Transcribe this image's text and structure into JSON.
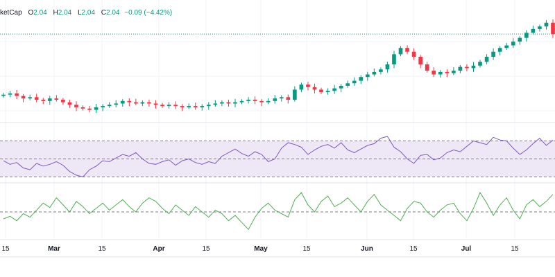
{
  "legend": {
    "name": "ketCap",
    "open_key": "O",
    "open": "2.04",
    "high_key": "H",
    "high": "2.04",
    "low_key": "L",
    "low": "2.04",
    "close_key": "C",
    "close": "2.04",
    "change": "−0.09 (−4.42%)"
  },
  "colors": {
    "up": "#089981",
    "down": "#f23645",
    "rsi_line": "#7e57c2",
    "rsi_band": "#ede7f6",
    "osc_line": "#4caf50",
    "price_line": "#089981",
    "grid": "#f0f3fa",
    "separator": "#e0e3eb"
  },
  "x_axis": {
    "ticks": [
      {
        "label": "15",
        "bold": false
      },
      {
        "label": "Mar",
        "bold": true
      },
      {
        "label": "15",
        "bold": false
      },
      {
        "label": "Apr",
        "bold": true
      },
      {
        "label": "15",
        "bold": false
      },
      {
        "label": "May",
        "bold": true
      },
      {
        "label": "15",
        "bold": false
      },
      {
        "label": "Jun",
        "bold": true
      },
      {
        "label": "15",
        "bold": false
      },
      {
        "label": "Jul",
        "bold": true
      },
      {
        "label": "15",
        "bold": false
      }
    ]
  },
  "chart_data": [
    {
      "type": "candlestick",
      "title": "",
      "closes": [
        1.56,
        1.57,
        1.55,
        1.53,
        1.54,
        1.52,
        1.51,
        1.53,
        1.52,
        1.5,
        1.48,
        1.46,
        1.45,
        1.44,
        1.46,
        1.47,
        1.48,
        1.49,
        1.51,
        1.5,
        1.49,
        1.5,
        1.49,
        1.48,
        1.47,
        1.48,
        1.47,
        1.46,
        1.47,
        1.46,
        1.47,
        1.48,
        1.49,
        1.5,
        1.49,
        1.5,
        1.51,
        1.52,
        1.51,
        1.5,
        1.51,
        1.53,
        1.54,
        1.52,
        1.6,
        1.64,
        1.62,
        1.6,
        1.58,
        1.59,
        1.61,
        1.63,
        1.65,
        1.67,
        1.7,
        1.72,
        1.74,
        1.76,
        1.8,
        1.88,
        1.93,
        1.9,
        1.86,
        1.8,
        1.75,
        1.72,
        1.74,
        1.73,
        1.75,
        1.78,
        1.77,
        1.79,
        1.82,
        1.86,
        1.9,
        1.93,
        1.95,
        1.98,
        2.01,
        2.05,
        2.08,
        2.1,
        2.13,
        2.04
      ],
      "ylim": [
        1.35,
        2.2
      ]
    },
    {
      "type": "line",
      "title": "",
      "series": [
        {
          "values": [
            48,
            44,
            46,
            40,
            38,
            45,
            42,
            44,
            47,
            43,
            36,
            32,
            30,
            38,
            42,
            48,
            47,
            51,
            55,
            53,
            57,
            50,
            45,
            44,
            47,
            49,
            43,
            48,
            50,
            46,
            44,
            47,
            45,
            53,
            57,
            61,
            56,
            53,
            58,
            55,
            47,
            50,
            62,
            68,
            66,
            63,
            55,
            60,
            64,
            66,
            62,
            68,
            60,
            57,
            61,
            65,
            67,
            73,
            75,
            63,
            58,
            50,
            45,
            54,
            55,
            49,
            51,
            57,
            60,
            58,
            64,
            70,
            68,
            66,
            74,
            71,
            70,
            62,
            55,
            60,
            67,
            73,
            65,
            71
          ]
        }
      ],
      "levels": [
        70,
        50,
        30
      ],
      "ylim": [
        25,
        85
      ]
    },
    {
      "type": "line",
      "title": "",
      "series": [
        {
          "values": [
            42,
            45,
            40,
            48,
            44,
            52,
            60,
            55,
            66,
            58,
            50,
            62,
            56,
            48,
            54,
            60,
            52,
            58,
            64,
            56,
            50,
            60,
            66,
            62,
            54,
            48,
            58,
            52,
            46,
            56,
            50,
            44,
            52,
            48,
            40,
            46,
            38,
            30,
            44,
            54,
            60,
            52,
            48,
            44,
            64,
            72,
            58,
            50,
            62,
            68,
            56,
            60,
            66,
            58,
            50,
            62,
            70,
            58,
            52,
            46,
            40,
            54,
            62,
            60,
            50,
            44,
            52,
            58,
            60,
            48,
            40,
            54,
            72,
            60,
            46,
            58,
            66,
            52,
            42,
            58,
            64,
            56,
            62,
            70
          ]
        }
      ],
      "levels": [
        50
      ],
      "ylim": [
        20,
        80
      ]
    }
  ]
}
